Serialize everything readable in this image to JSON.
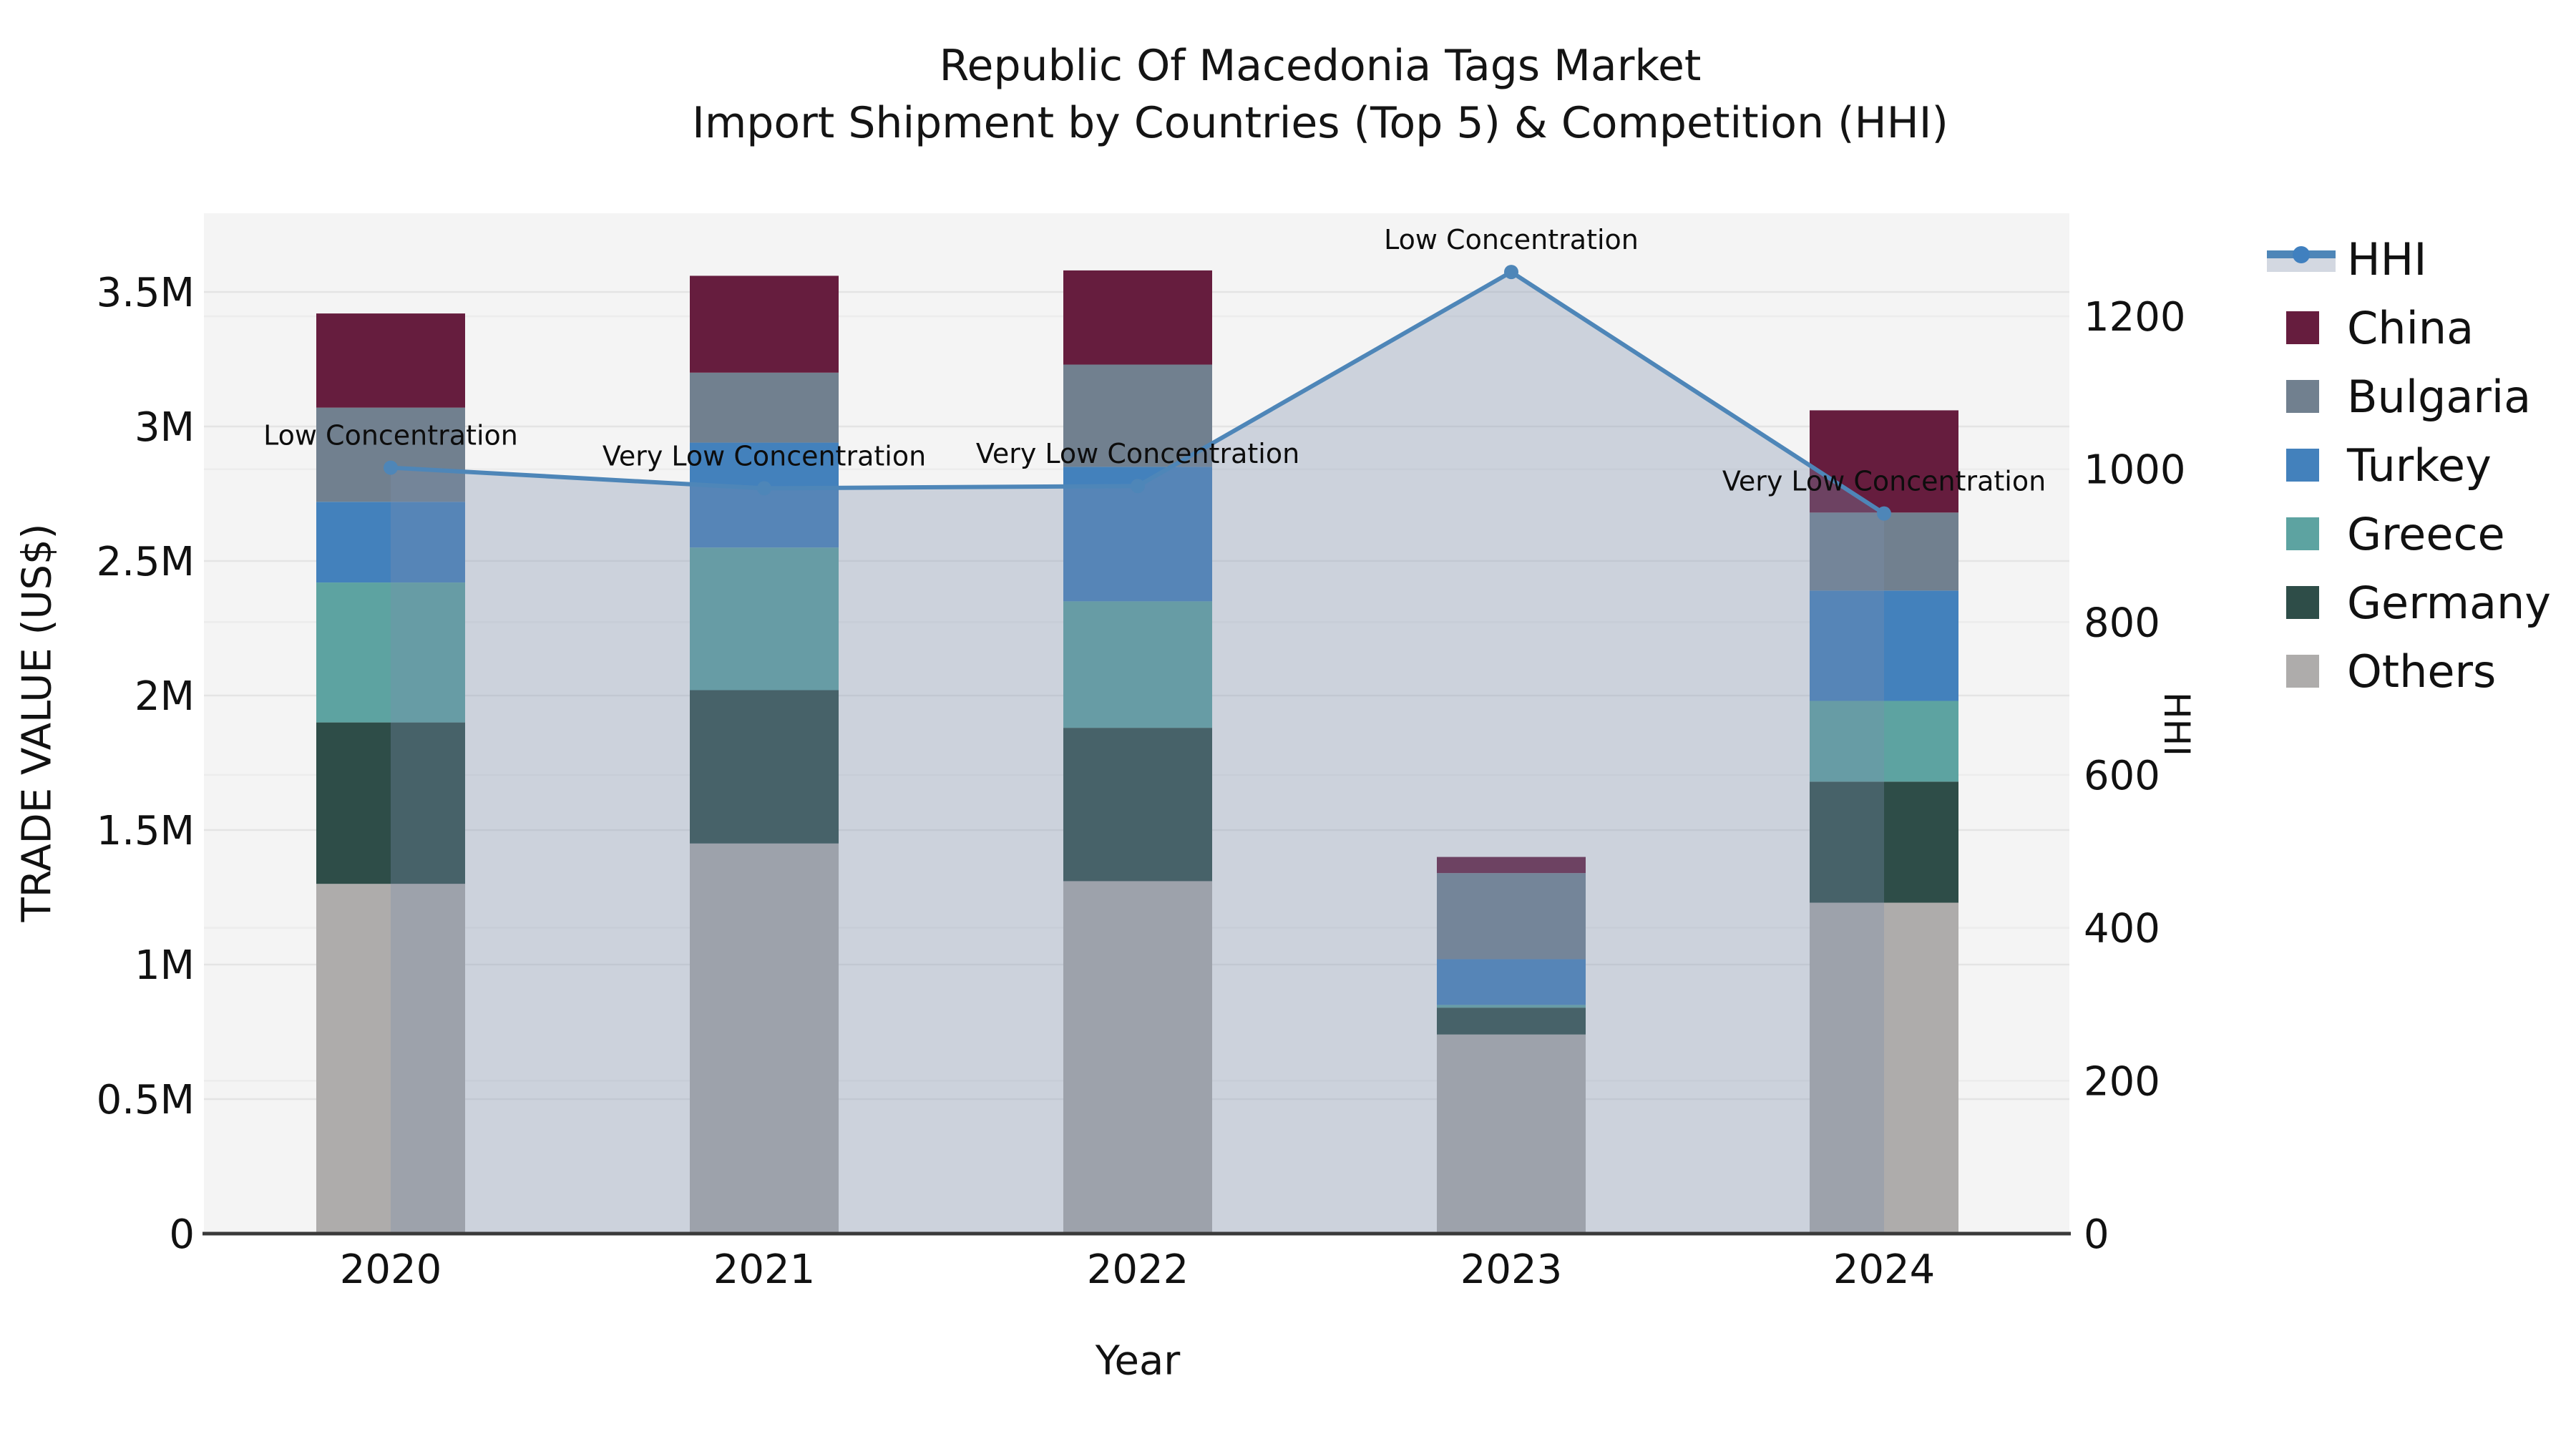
{
  "title": {
    "line1": "Republic Of Macedonia Tags Market",
    "line2": "Import Shipment by Countries (Top 5) & Competition (HHI)"
  },
  "axes": {
    "x_label": "Year",
    "y_left_label": "TRADE VALUE (US$)",
    "y_right_label": "HHI",
    "y_left_ticks": [
      {
        "value": 0,
        "label": "0"
      },
      {
        "value": 0.5,
        "label": "0.5M"
      },
      {
        "value": 1,
        "label": "1M"
      },
      {
        "value": 1.5,
        "label": "1.5M"
      },
      {
        "value": 2,
        "label": "2M"
      },
      {
        "value": 2.5,
        "label": "2.5M"
      },
      {
        "value": 3,
        "label": "3M"
      },
      {
        "value": 3.5,
        "label": "3.5M"
      }
    ],
    "y_right_ticks": [
      {
        "value": 0,
        "label": "0"
      },
      {
        "value": 200,
        "label": "200"
      },
      {
        "value": 400,
        "label": "400"
      },
      {
        "value": 600,
        "label": "600"
      },
      {
        "value": 800,
        "label": "800"
      },
      {
        "value": 1000,
        "label": "1000"
      },
      {
        "value": 1200,
        "label": "1200"
      }
    ]
  },
  "legend": {
    "items": [
      {
        "label": "HHI",
        "kind": "line",
        "color": "#4e86b8"
      },
      {
        "label": "China",
        "kind": "swatch",
        "color": "#661d3e"
      },
      {
        "label": "Bulgaria",
        "kind": "swatch",
        "color": "#71808f"
      },
      {
        "label": "Turkey",
        "kind": "swatch",
        "color": "#4381bc"
      },
      {
        "label": "Greece",
        "kind": "swatch",
        "color": "#5da3a1"
      },
      {
        "label": "Germany",
        "kind": "swatch",
        "color": "#2e4d48"
      },
      {
        "label": "Others",
        "kind": "swatch",
        "color": "#aeacab"
      }
    ]
  },
  "chart_data": {
    "type": "bar",
    "subtype": "stacked-bars-with-line",
    "categories": [
      "2020",
      "2021",
      "2022",
      "2023",
      "2024"
    ],
    "bar_value_unit": "million US$",
    "stack_order_bottom_to_top": [
      "Others",
      "Germany",
      "Greece",
      "Turkey",
      "Bulgaria",
      "China"
    ],
    "series": [
      {
        "name": "China",
        "color": "#661d3e",
        "values": [
          0.35,
          0.36,
          0.35,
          0.06,
          0.38
        ]
      },
      {
        "name": "Bulgaria",
        "color": "#71808f",
        "values": [
          0.35,
          0.26,
          0.38,
          0.32,
          0.29
        ]
      },
      {
        "name": "Turkey",
        "color": "#4381bc",
        "values": [
          0.3,
          0.39,
          0.5,
          0.17,
          0.41
        ]
      },
      {
        "name": "Greece",
        "color": "#5da3a1",
        "values": [
          0.52,
          0.53,
          0.47,
          0.01,
          0.3
        ]
      },
      {
        "name": "Germany",
        "color": "#2e4d48",
        "values": [
          0.6,
          0.57,
          0.57,
          0.1,
          0.45
        ]
      },
      {
        "name": "Others",
        "color": "#aeacab",
        "values": [
          1.3,
          1.45,
          1.31,
          0.74,
          1.23
        ]
      }
    ],
    "bar_totals": [
      3.42,
      3.56,
      3.58,
      1.4,
      3.06
    ],
    "line_series": {
      "name": "HHI",
      "color": "#4e86b8",
      "area_color": "rgba(125,143,172,0.33)",
      "values": [
        1002,
        975,
        978,
        1258,
        942
      ]
    },
    "annotations": [
      {
        "category": "2020",
        "text": "Low Concentration"
      },
      {
        "category": "2021",
        "text": "Very Low Concentration"
      },
      {
        "category": "2022",
        "text": "Very Low Concentration"
      },
      {
        "category": "2023",
        "text": "Low Concentration"
      },
      {
        "category": "2024",
        "text": "Very Low Concentration"
      }
    ],
    "ylim_left": [
      0,
      3.79
    ],
    "ylim_right": [
      0,
      1335
    ],
    "grid": true,
    "legend_position": "right",
    "plot_background": "#f4f4f4"
  }
}
